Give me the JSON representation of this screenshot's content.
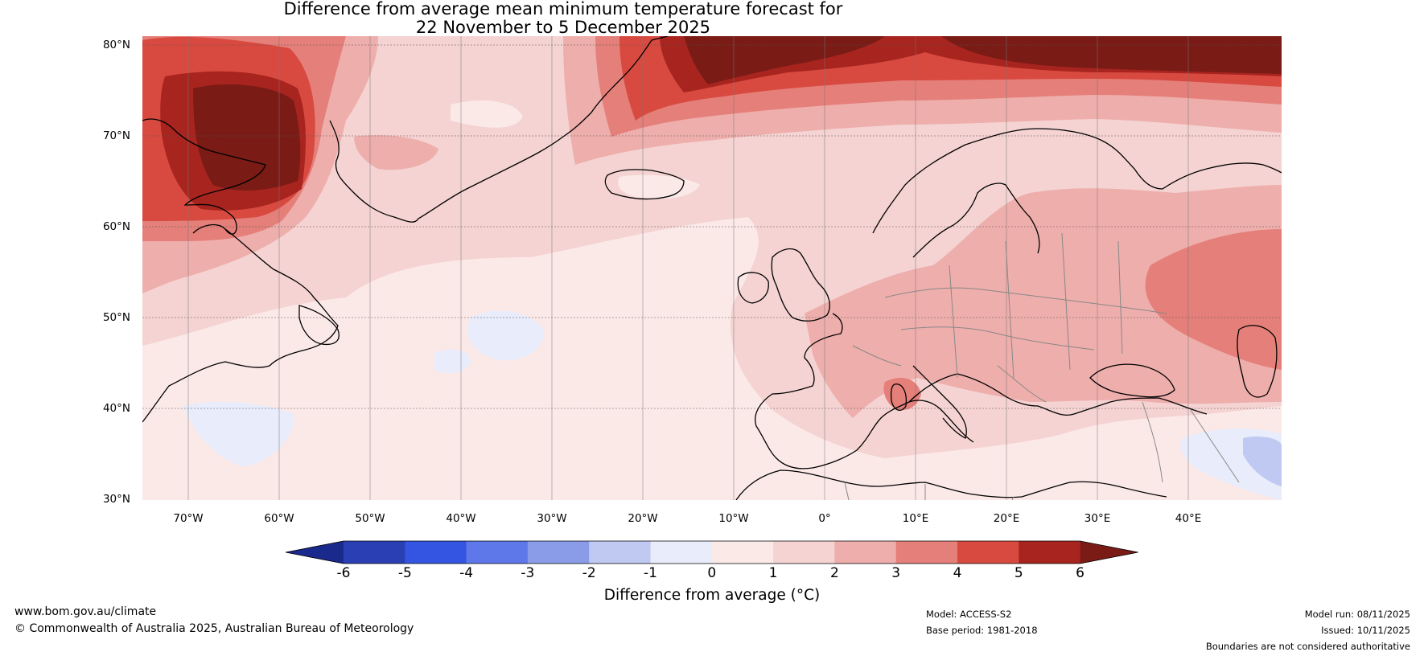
{
  "title": {
    "line1": "Difference from average mean minimum temperature forecast for",
    "line2": "22 November to 5 December 2025"
  },
  "map": {
    "lat_labels": [
      "80°N",
      "70°N",
      "60°N",
      "50°N",
      "40°N",
      "30°N"
    ],
    "lon_labels": [
      "70°W",
      "60°W",
      "50°W",
      "40°W",
      "30°W",
      "20°W",
      "10°W",
      "0°",
      "10°E",
      "20°E",
      "30°E",
      "40°E"
    ]
  },
  "colorbar": {
    "ticks": [
      "-6",
      "-5",
      "-4",
      "-3",
      "-2",
      "-1",
      "0",
      "1",
      "2",
      "3",
      "4",
      "5",
      "6"
    ],
    "label": "Difference from average (°C)",
    "colors": [
      "#1a2a8c",
      "#2a3fb4",
      "#3455e2",
      "#5e78ea",
      "#8a9ce8",
      "#c0c9f2",
      "#e8ecfb",
      "#fbe9e8",
      "#f4d3d2",
      "#eeaeac",
      "#e57f7a",
      "#d84a40",
      "#a8241f",
      "#7a1b16"
    ]
  },
  "footer": {
    "website": "www.bom.gov.au/climate",
    "copyright": "© Commonwealth of Australia 2025, Australian Bureau of Meteorology",
    "model": "Model: ACCESS-S2",
    "base_period": "Base period: 1981-2018",
    "model_run": "Model run: 08/11/2025",
    "issued": "Issued: 10/11/2025",
    "disclaimer": "Boundaries are not considered authoritative"
  }
}
